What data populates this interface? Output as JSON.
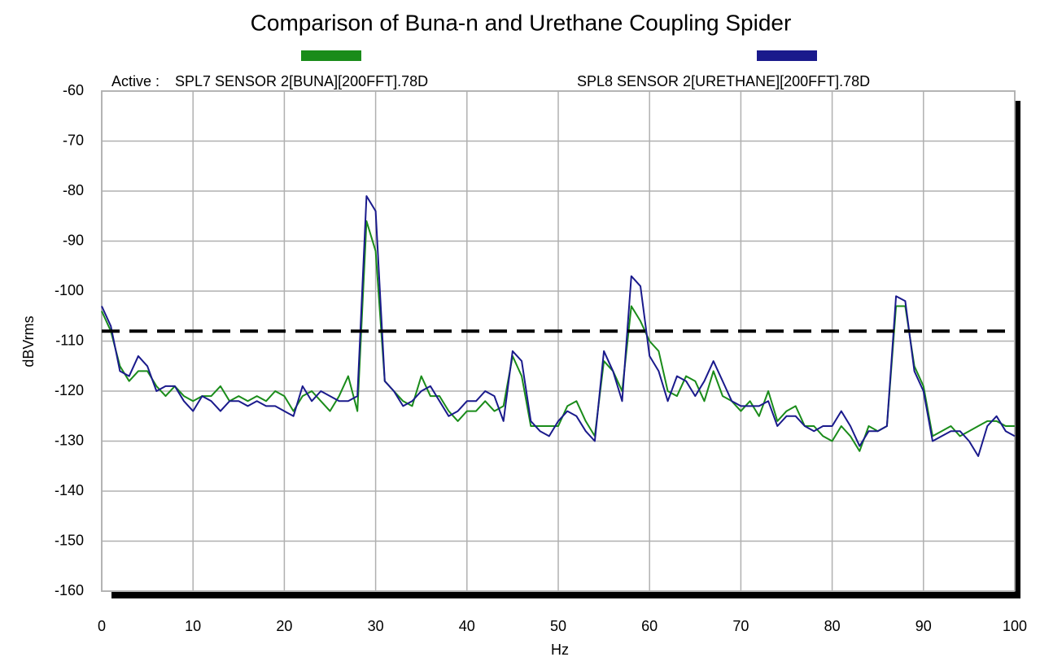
{
  "chart_data": {
    "type": "line",
    "title": "Comparison of Buna-n and Urethane Coupling Spider",
    "legend_title": "Active :",
    "xlabel": "Hz",
    "ylabel": "dBVrms",
    "x": [
      0,
      1,
      2,
      3,
      4,
      5,
      6,
      7,
      8,
      9,
      10,
      11,
      12,
      13,
      14,
      15,
      16,
      17,
      18,
      19,
      20,
      21,
      22,
      23,
      24,
      25,
      26,
      27,
      28,
      29,
      30,
      31,
      32,
      33,
      34,
      35,
      36,
      37,
      38,
      39,
      40,
      41,
      42,
      43,
      44,
      45,
      46,
      47,
      48,
      49,
      50,
      51,
      52,
      53,
      54,
      55,
      56,
      57,
      58,
      59,
      60,
      61,
      62,
      63,
      64,
      65,
      66,
      67,
      68,
      69,
      70,
      71,
      72,
      73,
      74,
      75,
      76,
      77,
      78,
      79,
      80,
      81,
      82,
      83,
      84,
      85,
      86,
      87,
      88,
      89,
      90,
      91,
      92,
      93,
      94,
      95,
      96,
      97,
      98,
      99,
      100
    ],
    "series": [
      {
        "name": "SPL7 SENSOR 2[BUNA][200FFT].78D",
        "color": "#1a8c1a",
        "values": [
          -104,
          -108,
          -115,
          -118,
          -116,
          -116,
          -119,
          -121,
          -119,
          -121,
          -122,
          -121,
          -121,
          -119,
          -122,
          -121,
          -122,
          -121,
          -122,
          -120,
          -121,
          -124,
          -121,
          -120,
          -122,
          -124,
          -121,
          -117,
          -124,
          -86,
          -92,
          -118,
          -120,
          -122,
          -123,
          -117,
          -121,
          -121,
          -124,
          -126,
          -124,
          -124,
          -122,
          -124,
          -123,
          -113,
          -117,
          -127,
          -127,
          -127,
          -127,
          -123,
          -122,
          -126,
          -129,
          -114,
          -116,
          -120,
          -103,
          -106,
          -110,
          -112,
          -120,
          -121,
          -117,
          -118,
          -122,
          -116,
          -121,
          -122,
          -124,
          -122,
          -125,
          -120,
          -126,
          -124,
          -123,
          -127,
          -127,
          -129,
          -130,
          -127,
          -129,
          -132,
          -127,
          -128,
          -127,
          -103,
          -103,
          -115,
          -119,
          -129,
          -128,
          -127,
          -129,
          -128,
          -127,
          -126,
          -126,
          -127,
          -127
        ]
      },
      {
        "name": "SPL8 SENSOR 2[URETHANE][200FFT].78D",
        "color": "#1a1a8c",
        "values": [
          -103,
          -107,
          -116,
          -117,
          -113,
          -115,
          -120,
          -119,
          -119,
          -122,
          -124,
          -121,
          -122,
          -124,
          -122,
          -122,
          -123,
          -122,
          -123,
          -123,
          -124,
          -125,
          -119,
          -122,
          -120,
          -121,
          -122,
          -122,
          -121,
          -81,
          -84,
          -118,
          -120,
          -123,
          -122,
          -120,
          -119,
          -122,
          -125,
          -124,
          -122,
          -122,
          -120,
          -121,
          -126,
          -112,
          -114,
          -126,
          -128,
          -129,
          -126,
          -124,
          -125,
          -128,
          -130,
          -112,
          -116,
          -122,
          -97,
          -99,
          -113,
          -116,
          -122,
          -117,
          -118,
          -121,
          -118,
          -114,
          -118,
          -122,
          -123,
          -123,
          -123,
          -122,
          -127,
          -125,
          -125,
          -127,
          -128,
          -127,
          -127,
          -124,
          -127,
          -131,
          -128,
          -128,
          -127,
          -101,
          -102,
          -116,
          -120,
          -130,
          -129,
          -128,
          -128,
          -130,
          -133,
          -127,
          -125,
          -128,
          -129
        ]
      }
    ],
    "reference_lines": [
      {
        "value": -108,
        "color": "#000000",
        "dashed": true
      }
    ],
    "xlim": [
      0,
      100
    ],
    "xticks": [
      0,
      10,
      20,
      30,
      40,
      50,
      60,
      70,
      80,
      90,
      100
    ],
    "ylim": [
      -160,
      -60
    ],
    "yticks": [
      -160,
      -150,
      -140,
      -130,
      -120,
      -110,
      -100,
      -90,
      -80,
      -70,
      -60
    ],
    "grid": true
  }
}
